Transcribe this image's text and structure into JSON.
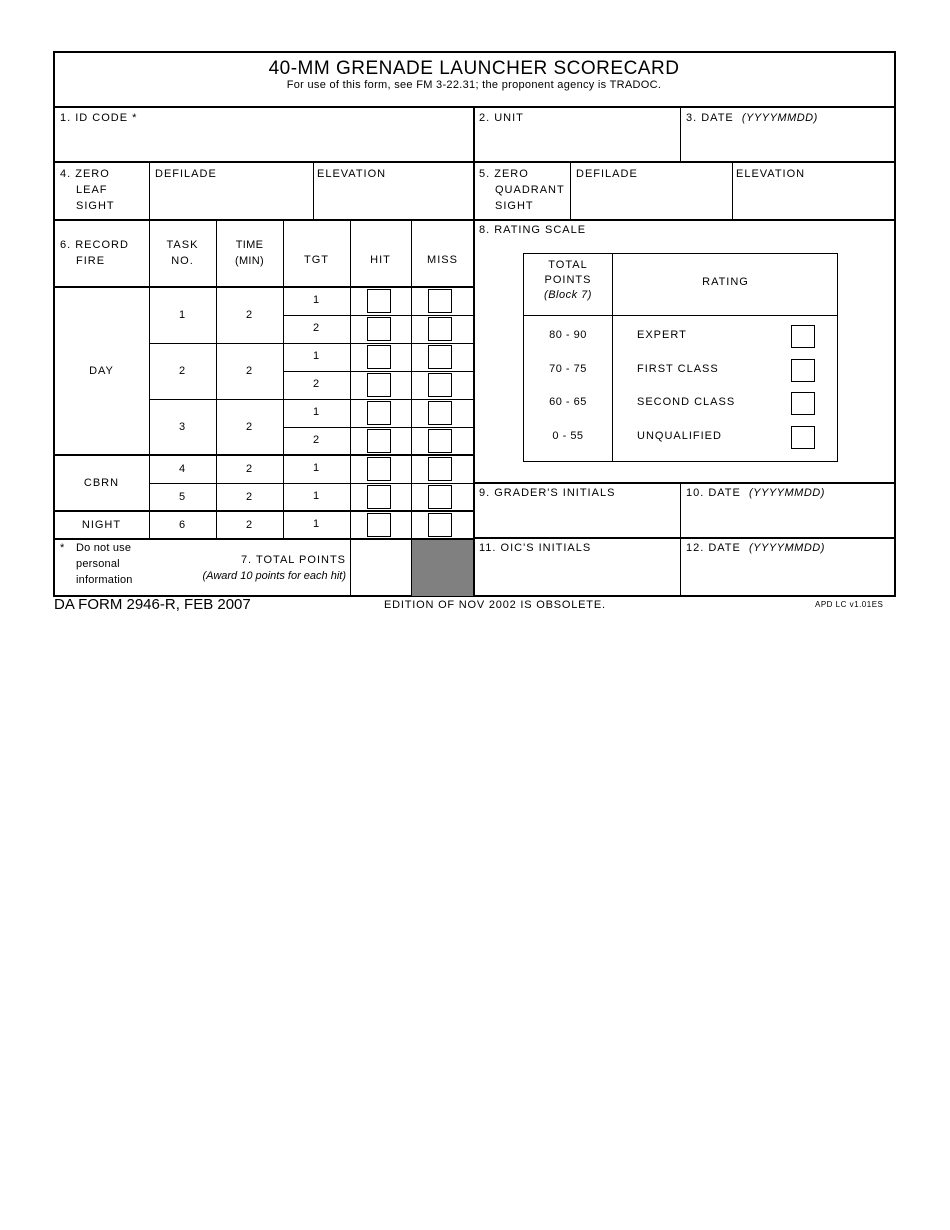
{
  "form": {
    "title": "40-MM GRENADE LAUNCHER SCORECARD",
    "subtitle": "For use of this form, see FM 3-22.31; the proponent agency is TRADOC.",
    "footer_form": "DA FORM 2946-R, FEB 2007",
    "footer_edition": "EDITION OF NOV 2002 IS OBSOLETE.",
    "footer_version": "APD LC v1.01ES"
  },
  "blocks": {
    "id_code": "1.  ID CODE *",
    "unit": "2.  UNIT",
    "date3": "3.  DATE",
    "date_format": "(YYYYMMDD)",
    "zero_leaf": [
      "4.  ZERO",
      "LEAF",
      "SIGHT"
    ],
    "zero_quadrant": [
      "5.  ZERO",
      "QUADRANT",
      "SIGHT"
    ],
    "defilade": "DEFILADE",
    "elevation": "ELEVATION",
    "graders_initials": "9.  GRADER'S INITIALS",
    "date10": "10.  DATE",
    "oics_initials": "11.  OIC'S INITIALS",
    "date12": "12.  DATE"
  },
  "record_fire": {
    "headers": {
      "record_fire": [
        "6.  RECORD",
        "FIRE"
      ],
      "task_no": [
        "TASK",
        "NO."
      ],
      "time": [
        "TIME",
        "(MIN)"
      ],
      "tgt": "TGT",
      "hit": "HIT",
      "miss": "MISS"
    },
    "groups": [
      {
        "label": "DAY",
        "tasks": [
          {
            "task": "1",
            "time": "2",
            "targets": [
              "1",
              "2"
            ]
          },
          {
            "task": "2",
            "time": "2",
            "targets": [
              "1",
              "2"
            ]
          },
          {
            "task": "3",
            "time": "2",
            "targets": [
              "1",
              "2"
            ]
          }
        ]
      },
      {
        "label": "CBRN",
        "tasks": [
          {
            "task": "4",
            "time": "2",
            "targets": [
              "1"
            ]
          },
          {
            "task": "5",
            "time": "2",
            "targets": [
              "1"
            ]
          }
        ]
      },
      {
        "label": "NIGHT",
        "tasks": [
          {
            "task": "6",
            "time": "2",
            "targets": [
              "1"
            ]
          }
        ]
      }
    ],
    "note": [
      "*",
      "Do not use",
      "personal",
      "information"
    ],
    "total_points": "7.  TOTAL POINTS",
    "award_note": "(Award 10 points for each hit)",
    "shaded_color": "#808080"
  },
  "rating_scale": {
    "title": "8.  RATING SCALE",
    "col_points": [
      "TOTAL",
      "POINTS",
      "(Block 7)"
    ],
    "col_rating": "RATING",
    "rows": [
      {
        "points": "80 - 90",
        "rating": "EXPERT"
      },
      {
        "points": "70 - 75",
        "rating": "FIRST CLASS"
      },
      {
        "points": "60 - 65",
        "rating": "SECOND CLASS"
      },
      {
        "points": "0 - 55",
        "rating": "UNQUALIFIED"
      }
    ]
  }
}
